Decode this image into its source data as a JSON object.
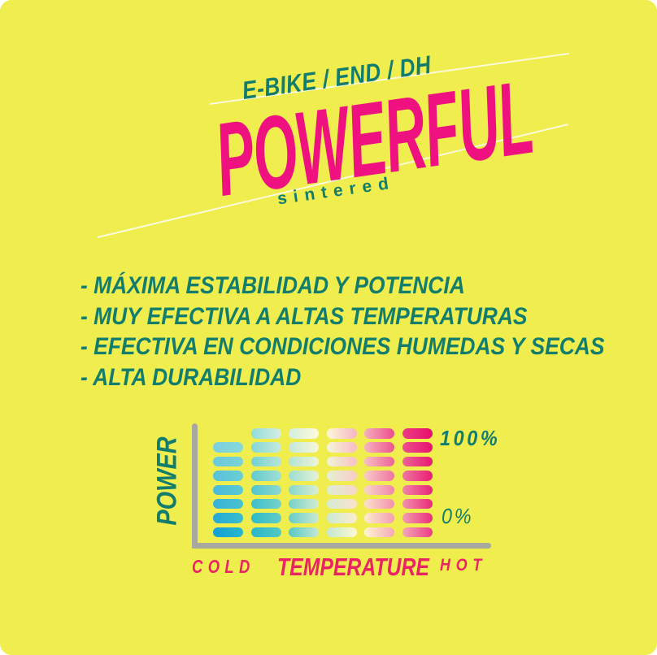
{
  "background_color": "#f0ee4e",
  "colors": {
    "teal": "#137d6d",
    "title_pink": "#f01181",
    "label_pink": "#ea2365",
    "axis_gray": "#a9a89f",
    "deco_line": "#fdfbe9",
    "gradient_blue": "#14a0d6",
    "gradient_magenta": "#e70d6d"
  },
  "header": {
    "category": "E-BIKE / END / DH",
    "title": "POWERFUL",
    "subtitle": "sintered"
  },
  "features": [
    "- MÁXIMA ESTABILIDAD Y POTENCIA",
    "- MUY EFECTIVA A ALTAS TEMPERATURAS",
    "- EFECTIVA EN CONDICIONES HUMEDAS Y SECAS",
    "- ALTA DURABILIDAD"
  ],
  "chart": {
    "y_axis_label": "POWER",
    "x_axis_label": "TEMPERATURE",
    "x_min_label": "COLD",
    "x_max_label": "HOT",
    "y_max_label": "100%",
    "y_min_label": "0%",
    "columns": 6,
    "rows": 8,
    "hidden_cells": [
      [
        0,
        0
      ]
    ],
    "row_shift": 1.0,
    "white_blend": 0.45,
    "gradient_stops": [
      [
        0.0,
        "#14a0d6"
      ],
      [
        1.0,
        "#27b7ca"
      ],
      [
        2.0,
        "#55c8c4"
      ],
      [
        3.0,
        "#c4e7d4"
      ],
      [
        4.0,
        "#fdf8d0"
      ],
      [
        4.6,
        "#f8c9c8"
      ],
      [
        5.5,
        "#f07fa6"
      ],
      [
        6.1,
        "#ea2f7c"
      ],
      [
        7.0,
        "#e70d6d"
      ]
    ]
  },
  "chart_data": {
    "type": "heatmap",
    "title": "POWER vs TEMPERATURE",
    "xlabel": "TEMPERATURE",
    "ylabel": "POWER",
    "x_range_labels": [
      "COLD",
      "HOT"
    ],
    "y_range_labels": [
      "0%",
      "100%"
    ],
    "columns": 6,
    "rows": 8,
    "legend_position": "none",
    "grid": false,
    "description": "Stylized 6x8 grid of pill marks filling the full 0-100% power range across all temperatures; color ramps from blue/teal at COLD through cream to magenta at HOT, with the light band running diagonally (top-left to bottom-right)."
  }
}
